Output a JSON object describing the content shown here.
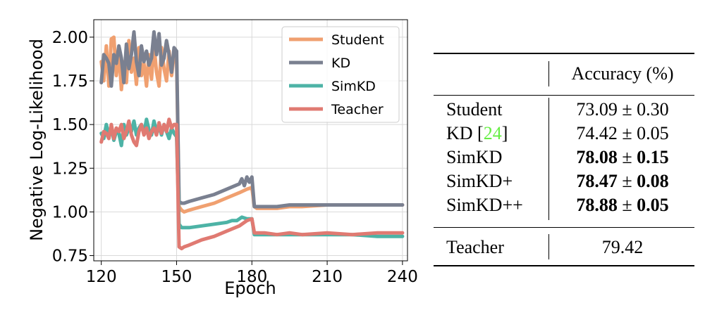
{
  "colors": {
    "Student": "#f0a070",
    "KD": "#7a8090",
    "SimKD": "#4db3a6",
    "Teacher": "#e07a72",
    "citation": "#66ee44"
  },
  "chart_data": {
    "type": "line",
    "xlabel": "Epoch",
    "ylabel": "Negative Log-Likelihood",
    "xlim": [
      117,
      242
    ],
    "ylim": [
      0.72,
      2.1
    ],
    "xticks": [
      120,
      150,
      180,
      210,
      240
    ],
    "yticks": [
      0.75,
      1.0,
      1.25,
      1.5,
      1.75,
      2.0
    ],
    "ytick_labels": [
      "0.75",
      "1.00",
      "1.25",
      "1.50",
      "1.75",
      "2.00"
    ],
    "grid": true,
    "legend_position": "top-right",
    "series": [
      {
        "name": "Student",
        "x": [
          120,
          121,
          122,
          123,
          124,
          125,
          126,
          127,
          128,
          129,
          130,
          131,
          132,
          133,
          134,
          135,
          136,
          137,
          138,
          139,
          140,
          141,
          142,
          143,
          144,
          145,
          146,
          147,
          148,
          149,
          150,
          151,
          152,
          153,
          155,
          160,
          165,
          170,
          175,
          178,
          180,
          181,
          182,
          185,
          190,
          195,
          200,
          210,
          220,
          230,
          240
        ],
        "y": [
          1.86,
          1.75,
          1.95,
          1.72,
          1.99,
          2.0,
          1.78,
          1.92,
          1.7,
          1.86,
          1.74,
          1.98,
          1.8,
          1.88,
          1.73,
          1.94,
          1.78,
          1.85,
          1.72,
          1.9,
          1.76,
          1.96,
          1.8,
          1.72,
          1.94,
          1.82,
          1.75,
          1.92,
          1.78,
          1.9,
          1.88,
          1.03,
          1.01,
          1.0,
          1.01,
          1.03,
          1.05,
          1.08,
          1.11,
          1.13,
          1.14,
          1.03,
          1.02,
          1.02,
          1.02,
          1.03,
          1.03,
          1.04,
          1.04,
          1.04,
          1.04
        ]
      },
      {
        "name": "KD",
        "x": [
          120,
          121,
          122,
          123,
          124,
          125,
          126,
          127,
          128,
          129,
          130,
          131,
          132,
          133,
          134,
          135,
          136,
          137,
          138,
          139,
          140,
          141,
          142,
          143,
          144,
          145,
          146,
          147,
          148,
          149,
          150,
          151,
          152,
          153,
          155,
          160,
          165,
          170,
          175,
          176,
          177,
          178,
          179,
          180,
          181,
          182,
          185,
          190,
          195,
          200,
          210,
          220,
          230,
          240
        ],
        "y": [
          1.74,
          1.9,
          1.88,
          1.85,
          1.72,
          1.9,
          1.85,
          1.95,
          1.88,
          1.74,
          1.96,
          1.82,
          1.9,
          2.03,
          1.86,
          1.78,
          1.95,
          1.86,
          1.92,
          1.84,
          1.88,
          2.03,
          1.9,
          2.02,
          1.84,
          1.88,
          1.98,
          1.9,
          1.8,
          1.94,
          1.92,
          1.06,
          1.05,
          1.05,
          1.06,
          1.08,
          1.1,
          1.13,
          1.16,
          1.19,
          1.15,
          1.2,
          1.17,
          1.2,
          1.03,
          1.03,
          1.03,
          1.03,
          1.04,
          1.04,
          1.04,
          1.04,
          1.04,
          1.04
        ]
      },
      {
        "name": "SimKD",
        "x": [
          120,
          121,
          122,
          123,
          124,
          125,
          126,
          127,
          128,
          129,
          130,
          131,
          132,
          133,
          134,
          135,
          136,
          137,
          138,
          139,
          140,
          141,
          142,
          143,
          144,
          145,
          146,
          147,
          148,
          149,
          150,
          151,
          152,
          153,
          155,
          160,
          165,
          170,
          172,
          174,
          176,
          178,
          180,
          181,
          182,
          185,
          190,
          195,
          200,
          210,
          220,
          230,
          240
        ],
        "y": [
          1.45,
          1.42,
          1.5,
          1.44,
          1.48,
          1.41,
          1.46,
          1.45,
          1.38,
          1.5,
          1.44,
          1.48,
          1.46,
          1.52,
          1.44,
          1.48,
          1.5,
          1.45,
          1.53,
          1.47,
          1.44,
          1.52,
          1.46,
          1.49,
          1.44,
          1.5,
          1.46,
          1.42,
          1.48,
          1.45,
          1.43,
          0.93,
          0.91,
          0.91,
          0.91,
          0.92,
          0.93,
          0.94,
          0.95,
          0.95,
          0.97,
          0.96,
          0.96,
          0.87,
          0.87,
          0.87,
          0.87,
          0.87,
          0.87,
          0.87,
          0.87,
          0.86,
          0.86
        ]
      },
      {
        "name": "Teacher",
        "x": [
          120,
          121,
          122,
          123,
          124,
          125,
          126,
          127,
          128,
          129,
          130,
          131,
          132,
          133,
          134,
          135,
          136,
          137,
          138,
          139,
          140,
          141,
          142,
          143,
          144,
          145,
          146,
          147,
          148,
          149,
          150,
          151,
          152,
          153,
          155,
          160,
          165,
          170,
          175,
          178,
          180,
          181,
          182,
          185,
          190,
          195,
          200,
          210,
          220,
          230,
          240
        ],
        "y": [
          1.4,
          1.46,
          1.45,
          1.42,
          1.5,
          1.42,
          1.48,
          1.46,
          1.5,
          1.42,
          1.46,
          1.52,
          1.44,
          1.4,
          1.38,
          1.46,
          1.5,
          1.44,
          1.48,
          1.42,
          1.46,
          1.48,
          1.44,
          1.51,
          1.45,
          1.5,
          1.46,
          1.53,
          1.48,
          1.5,
          1.5,
          0.8,
          0.79,
          0.8,
          0.81,
          0.84,
          0.86,
          0.89,
          0.92,
          0.95,
          0.96,
          0.88,
          0.88,
          0.88,
          0.87,
          0.88,
          0.87,
          0.88,
          0.87,
          0.88,
          0.88
        ]
      }
    ]
  },
  "table": {
    "header": "Accuracy (%)",
    "rows": [
      {
        "method": "Student",
        "citation": "",
        "value": "73.09",
        "pm": "±",
        "std": "0.30",
        "bold": false
      },
      {
        "method": "KD [",
        "citation": "24",
        "citation_close": "]",
        "value": "74.42",
        "pm": "±",
        "std": "0.05",
        "bold": false
      },
      {
        "method": "SimKD",
        "citation": "",
        "value": "78.08",
        "pm": "±",
        "std": "0.15",
        "bold": true
      },
      {
        "method": "SimKD+",
        "citation": "",
        "value": "78.47",
        "pm": "±",
        "std": "0.08",
        "bold": true
      },
      {
        "method": "SimKD++",
        "citation": "",
        "value": "78.88",
        "pm": "±",
        "std": "0.05",
        "bold": true
      }
    ],
    "teacher": {
      "method": "Teacher",
      "value": "79.42"
    }
  }
}
